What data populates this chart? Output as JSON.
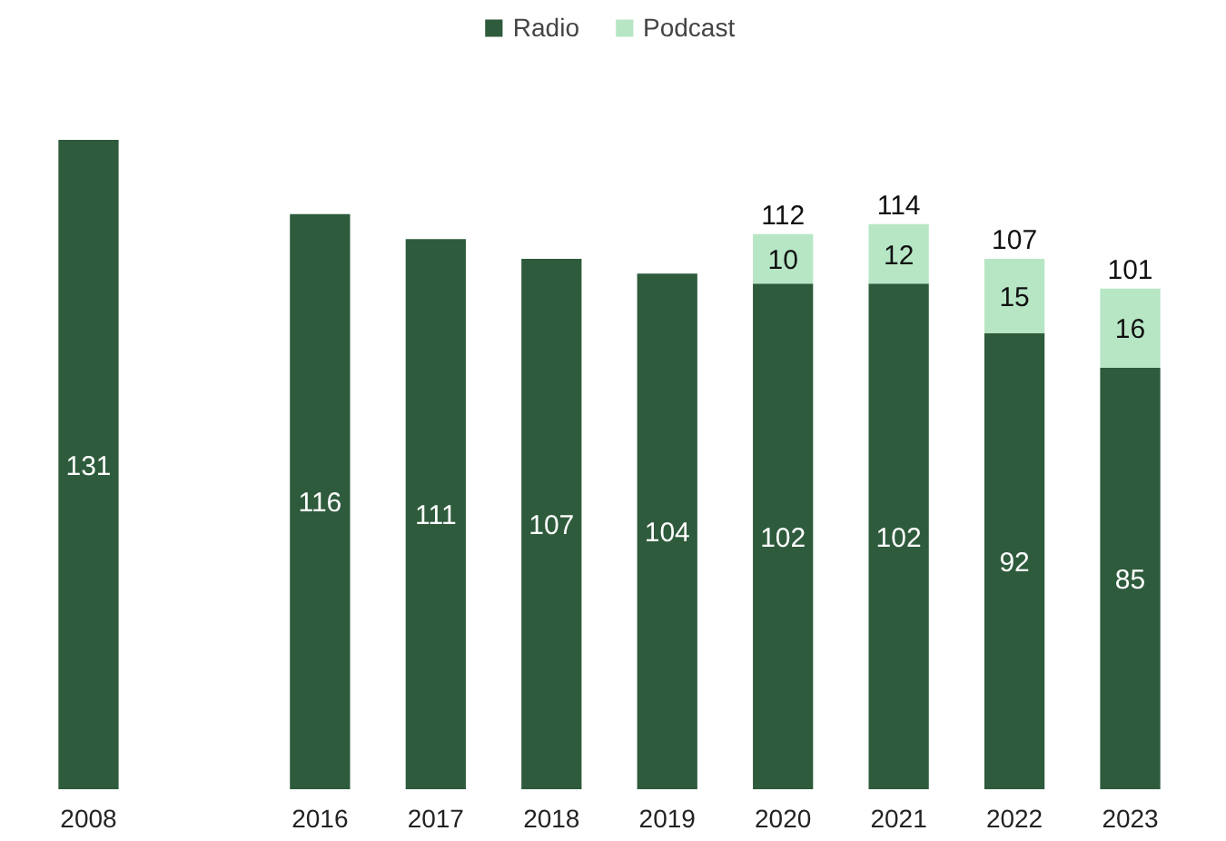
{
  "chart_data": {
    "type": "bar",
    "stacked": true,
    "categories": [
      "2008",
      null,
      "2016",
      "2017",
      "2018",
      "2019",
      "2020",
      "2021",
      "2022",
      "2023"
    ],
    "series": [
      {
        "name": "Radio",
        "color": "#2e5b3c",
        "values": [
          131,
          null,
          116,
          111,
          107,
          104,
          102,
          102,
          92,
          85
        ]
      },
      {
        "name": "Podcast",
        "color": "#b7e6c5",
        "values": [
          null,
          null,
          null,
          null,
          null,
          null,
          10,
          12,
          15,
          16
        ]
      }
    ],
    "data_labels": true,
    "totals": [
      null,
      null,
      null,
      null,
      null,
      null,
      "112",
      "114",
      "107",
      "101"
    ],
    "legend": "top",
    "grid": false,
    "tick_labels": "x"
  }
}
